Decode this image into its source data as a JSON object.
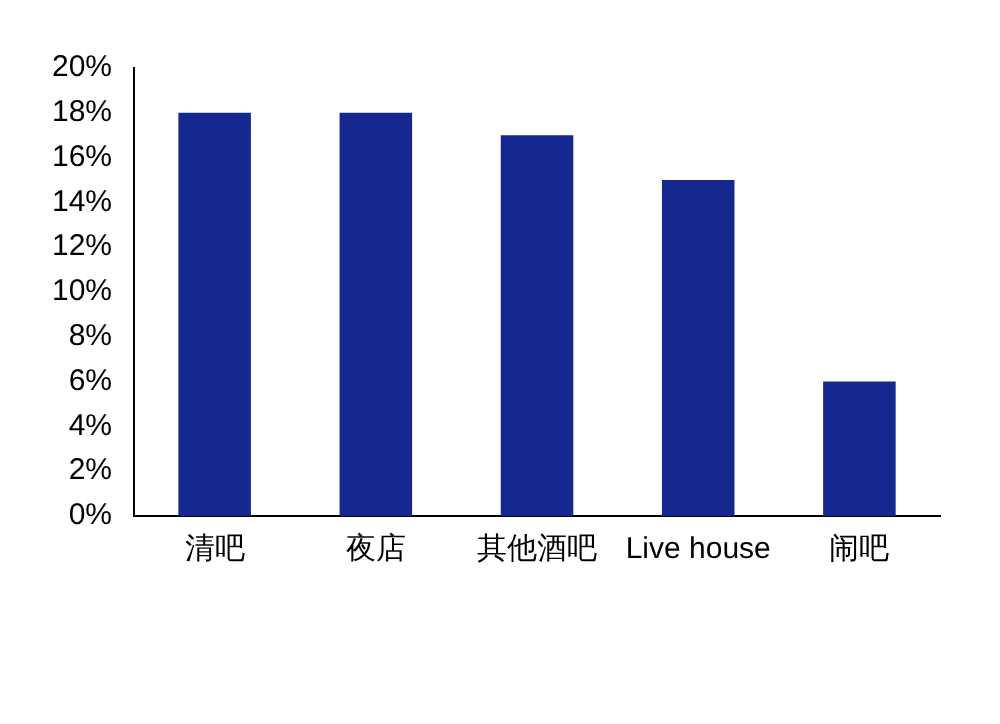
{
  "chart_data": {
    "type": "bar",
    "categories": [
      "清吧",
      "夜店",
      "其他酒吧",
      "Live house",
      "闹吧"
    ],
    "values": [
      18,
      18,
      17,
      15,
      6
    ],
    "color": "#14288f",
    "ylim": [
      0,
      20
    ],
    "yticks": [
      {
        "value": 0,
        "label": "0%"
      },
      {
        "value": 2,
        "label": "2%"
      },
      {
        "value": 4,
        "label": "4%"
      },
      {
        "value": 6,
        "label": "6%"
      },
      {
        "value": 8,
        "label": "8%"
      },
      {
        "value": 10,
        "label": "10%"
      },
      {
        "value": 12,
        "label": "12%"
      },
      {
        "value": 14,
        "label": "14%"
      },
      {
        "value": 16,
        "label": "16%"
      },
      {
        "value": 18,
        "label": "18%"
      },
      {
        "value": 20,
        "label": "20%"
      }
    ],
    "grid": false,
    "legend": false
  }
}
